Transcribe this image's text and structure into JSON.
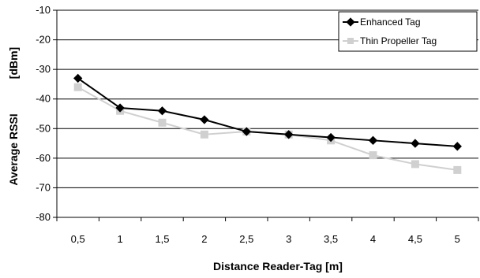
{
  "chart_data": {
    "type": "line",
    "x": [
      "0,5",
      "1",
      "1,5",
      "2",
      "2,5",
      "3",
      "3,5",
      "4",
      "4,5",
      "5"
    ],
    "series": [
      {
        "name": "Enhanced Tag",
        "values": [
          -33,
          -43,
          -44,
          -47,
          -51,
          -52,
          -53,
          -54,
          -55,
          -56
        ],
        "color": "#000000",
        "marker": "diamond"
      },
      {
        "name": "Thin Propeller Tag",
        "values": [
          -36,
          -44,
          -48,
          -52,
          -51,
          -52,
          -54,
          -59,
          -62,
          -64
        ],
        "color": "#d0d0d0",
        "marker": "square"
      }
    ],
    "y_ticks": [
      -10,
      -20,
      -30,
      -40,
      -50,
      -60,
      -70,
      -80
    ],
    "ylim": [
      -80,
      -10
    ],
    "xlabel": "Distance Reader-Tag [m]",
    "ylabel": "Average RSSI",
    "yunit": "[dBm]",
    "grid": true,
    "legend_position": "top-right"
  }
}
